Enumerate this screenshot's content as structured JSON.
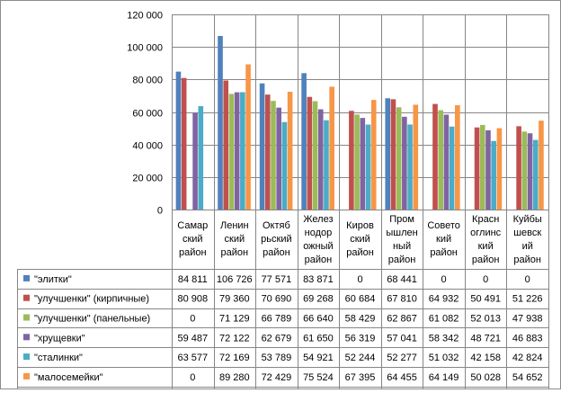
{
  "chart_data": {
    "type": "bar",
    "title": "",
    "xlabel": "",
    "ylabel": "",
    "ylim": [
      0,
      120000
    ],
    "yticks": [
      0,
      20000,
      40000,
      60000,
      80000,
      100000,
      120000
    ],
    "ytick_labels": [
      "0",
      "20 000",
      "40 000",
      "60 000",
      "80 000",
      "100 000",
      "120 000"
    ],
    "grid": true,
    "legend": "data-table-left",
    "categories": [
      [
        "Самар",
        "ский",
        "район"
      ],
      [
        "Ленин",
        "ский",
        "район"
      ],
      [
        "Октяб",
        "рьский",
        "район"
      ],
      [
        "Желез",
        "нодор",
        "ожный",
        "район"
      ],
      [
        "Киров",
        "ский",
        "район"
      ],
      [
        "Пром",
        "ышлен",
        "ный",
        "район"
      ],
      [
        "Совето",
        "кий",
        "район"
      ],
      [
        "Красн",
        "оглинс",
        "кий",
        "район"
      ],
      [
        "Куйбы",
        "шевск",
        "ий",
        "район"
      ]
    ],
    "series": [
      {
        "name": "\"элитки\"",
        "color": "#4f81bd",
        "values": [
          84811,
          106726,
          77571,
          83871,
          0,
          68441,
          0,
          0,
          0
        ],
        "labels": [
          "84 811",
          "106 726",
          "77 571",
          "83 871",
          "0",
          "68 441",
          "0",
          "0",
          "0"
        ]
      },
      {
        "name": "\"улучшенки\"  (кирпичные)",
        "color": "#c0504d",
        "values": [
          80908,
          79360,
          70690,
          69268,
          60684,
          67810,
          64932,
          50491,
          51226
        ],
        "labels": [
          "80 908",
          "79 360",
          "70 690",
          "69 268",
          "60 684",
          "67 810",
          "64 932",
          "50 491",
          "51 226"
        ]
      },
      {
        "name": "\"улучшенки\"  (панельные)",
        "color": "#9bbb59",
        "values": [
          0,
          71129,
          66789,
          66640,
          58429,
          62867,
          61082,
          52013,
          47938
        ],
        "labels": [
          "0",
          "71 129",
          "66 789",
          "66 640",
          "58 429",
          "62 867",
          "61 082",
          "52 013",
          "47 938"
        ]
      },
      {
        "name": "\"хрущевки\"",
        "color": "#8064a2",
        "values": [
          59487,
          72122,
          62679,
          61650,
          56319,
          57041,
          58342,
          48721,
          46883
        ],
        "labels": [
          "59 487",
          "72 122",
          "62 679",
          "61 650",
          "56 319",
          "57 041",
          "58 342",
          "48 721",
          "46 883"
        ]
      },
      {
        "name": "\"сталинки\"",
        "color": "#4bacc6",
        "values": [
          63577,
          72169,
          53789,
          54921,
          52244,
          52277,
          51032,
          42158,
          42824
        ],
        "labels": [
          "63 577",
          "72 169",
          "53 789",
          "54 921",
          "52 244",
          "52 277",
          "51 032",
          "42 158",
          "42 824"
        ]
      },
      {
        "name": "\"малосемейки\"",
        "color": "#f79646",
        "values": [
          0,
          89280,
          72429,
          75524,
          67395,
          64455,
          64149,
          50028,
          54652
        ],
        "labels": [
          "0",
          "89 280",
          "72 429",
          "75 524",
          "67 395",
          "64 455",
          "64 149",
          "50 028",
          "54 652"
        ]
      }
    ]
  }
}
